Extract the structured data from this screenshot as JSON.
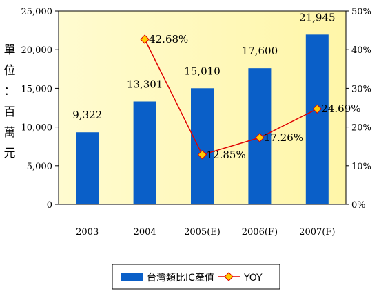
{
  "chart_data": {
    "type": "bar",
    "categories": [
      "2003",
      "2004",
      "2005(E)",
      "2006(F)",
      "2007(F)"
    ],
    "ylabel": "單位：百萬元",
    "ylabel_chars": [
      "單",
      "位",
      "：",
      "百",
      "萬",
      "元"
    ],
    "ylim": [
      0,
      25000
    ],
    "y_ticks": [
      "0",
      "5,000",
      "10,000",
      "15,000",
      "20,000",
      "25,000"
    ],
    "y2lim": [
      0,
      50
    ],
    "y2_ticks": [
      "0%",
      "10%",
      "20%",
      "30%",
      "40%",
      "50%"
    ],
    "grid": false,
    "legend_position": "bottom",
    "plot_background": "#ffffcc",
    "series": [
      {
        "name": "台灣類比IC產值",
        "kind": "bar",
        "axis": "left",
        "color": "#0a5fc8",
        "values": [
          9322,
          13301,
          15010,
          17600,
          21945
        ],
        "labels": [
          "9,322",
          "13,301",
          "15,010",
          "17,600",
          "21,945"
        ]
      },
      {
        "name": "YOY",
        "kind": "line",
        "axis": "right",
        "color": "#e00000",
        "marker_color": "#ffcc00",
        "x": [
          "2004",
          "2005(E)",
          "2006(F)",
          "2007(F)"
        ],
        "values": [
          42.68,
          12.85,
          17.26,
          24.69
        ],
        "labels": [
          "42.68%",
          "12.85%",
          "17.26%",
          "24.69%"
        ]
      }
    ]
  }
}
